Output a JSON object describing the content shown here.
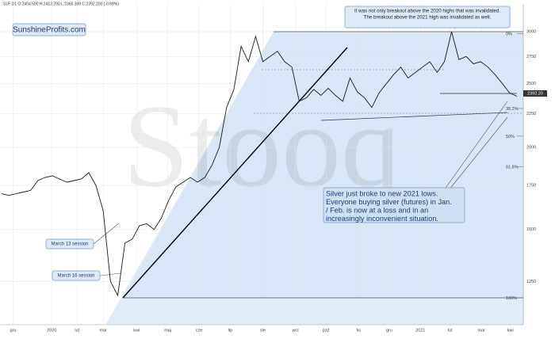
{
  "chart_data": {
    "type": "line",
    "header": "SI.F  D1  O:2404.500  H:2413.700  L:2360.300  C:2392.200  (-0.69%)",
    "watermark": "Stooq",
    "brand": "SunshineProfits.com",
    "log_scale": true,
    "grid": true,
    "color": "#1a1a1a",
    "x": [
      0,
      1,
      2,
      3,
      4,
      5,
      6,
      7,
      8,
      9,
      10,
      11,
      12,
      13,
      14,
      15,
      16,
      17,
      18,
      19,
      20,
      21,
      22,
      23,
      24,
      25,
      26,
      27,
      28,
      29,
      30,
      31,
      32,
      33,
      34,
      35,
      36,
      37,
      38,
      39,
      40,
      41,
      42,
      43,
      44,
      45,
      46,
      47,
      48,
      49,
      50,
      51,
      52,
      53,
      54,
      55,
      56,
      57,
      58,
      59,
      60,
      61,
      62,
      63,
      64,
      65,
      66,
      67,
      68,
      69,
      70,
      71
    ],
    "values": [
      1700,
      1690,
      1700,
      1710,
      1720,
      1780,
      1800,
      1810,
      1790,
      1770,
      1780,
      1790,
      1830,
      1750,
      1600,
      1250,
      1190,
      1430,
      1450,
      1520,
      1530,
      1500,
      1560,
      1660,
      1740,
      1770,
      1800,
      1770,
      1800,
      1880,
      2000,
      2300,
      2450,
      2850,
      2700,
      2950,
      2700,
      2750,
      2800,
      2700,
      2650,
      2350,
      2380,
      2450,
      2400,
      2460,
      2400,
      2350,
      2550,
      2430,
      2380,
      2300,
      2420,
      2500,
      2580,
      2650,
      2550,
      2600,
      2650,
      2700,
      2600,
      2700,
      3000,
      2720,
      2750,
      2680,
      2700,
      2650,
      2580,
      2500,
      2420,
      2392.2
    ],
    "last_price_label": "2392.20",
    "xlim": [
      0,
      71
    ],
    "xticks": [
      {
        "value": 1.6,
        "label": "gru"
      },
      {
        "value": 6.9,
        "label": "2020"
      },
      {
        "value": 10.4,
        "label": "lut"
      },
      {
        "value": 14,
        "label": "mar"
      },
      {
        "value": 18.6,
        "label": "kwi"
      },
      {
        "value": 22.9,
        "label": "maj"
      },
      {
        "value": 27.2,
        "label": "cze"
      },
      {
        "value": 31.5,
        "label": "lip"
      },
      {
        "value": 36,
        "label": "sie"
      },
      {
        "value": 40.5,
        "label": "wrz"
      },
      {
        "value": 44.7,
        "label": "paź"
      },
      {
        "value": 49.2,
        "label": "lis"
      },
      {
        "value": 53.4,
        "label": "gru"
      },
      {
        "value": 57.7,
        "label": "2021"
      },
      {
        "value": 61.8,
        "label": "lut"
      },
      {
        "value": 66.1,
        "label": "mar"
      },
      {
        "value": 70.1,
        "label": "kwi"
      }
    ],
    "ylim": [
      1074,
      3306
    ],
    "yticks": [
      1250,
      1500,
      1750,
      2000,
      2250,
      2500,
      2750,
      3000
    ],
    "fib": [
      {
        "label": "0%",
        "value": 2980
      },
      {
        "label": "38.2%",
        "value": 2292
      },
      {
        "label": "50%",
        "value": 2080
      },
      {
        "label": "61.8%",
        "value": 1868
      },
      {
        "label": "100%",
        "value": 1180
      }
    ],
    "annotations": [
      {
        "lines": [
          "It was not only breakout above the 2020 highs that was invalidated.",
          "The breakout above the 2021 high was invalidated as well."
        ]
      },
      {
        "lines": [
          "Silver just broke to new 2021 lows.",
          "Everyone buying silver (futures) in Jan.",
          "/ Feb. is now at a loss and in an",
          "increasingly inconvenient situation."
        ]
      },
      {
        "lines": [
          "March 13 session"
        ]
      },
      {
        "lines": [
          "March 16 session"
        ]
      }
    ]
  }
}
